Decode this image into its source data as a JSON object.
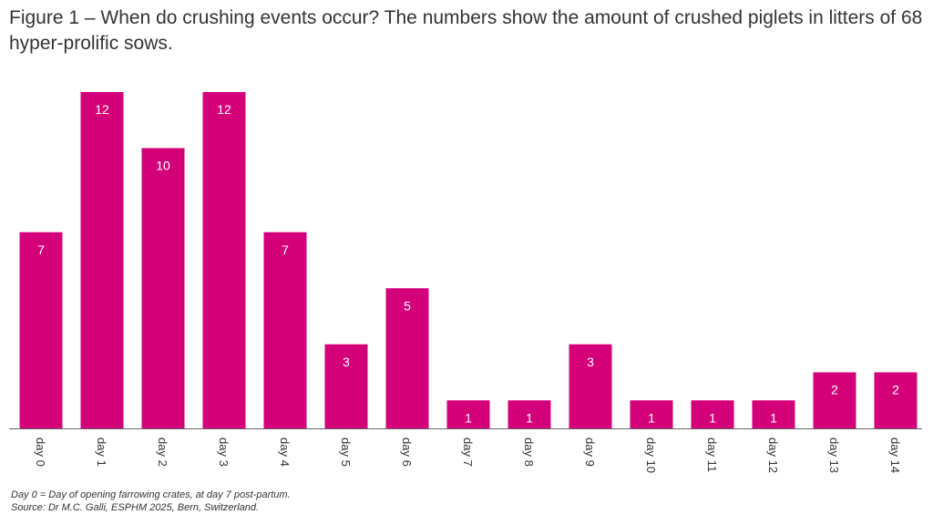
{
  "title": "Figure 1 – When do crushing events occur? The numbers show the amount of crushed piglets in litters of 68 hyper-prolific sows.",
  "footnotes": [
    "Day 0 = Day of opening farrowing crates, at day 7 post-partum.",
    "Source: Dr M.C. Galli, ESPHM 2025, Bern, Switzerland."
  ],
  "colors": {
    "bar": "#D4007A",
    "bar_label": "#FFFFFF",
    "axis": "#666666",
    "text": "#333333"
  },
  "chart_data": {
    "type": "bar",
    "categories": [
      "day 0",
      "day 1",
      "day 2",
      "day 3",
      "day 4",
      "day 5",
      "day 6",
      "day 7",
      "day 8",
      "day 9",
      "day 10",
      "day 11",
      "day 12",
      "day 13",
      "day 14"
    ],
    "values": [
      7,
      12,
      10,
      12,
      7,
      3,
      5,
      1,
      1,
      3,
      1,
      1,
      1,
      2,
      2
    ],
    "title": "Figure 1 – When do crushing events occur? The numbers show the amount of crushed piglets in litters of 68 hyper-prolific sows.",
    "xlabel": "",
    "ylabel": "",
    "ylim": [
      0,
      12
    ],
    "grid": false,
    "legend": "none",
    "tick_label_rotation": "vertical"
  }
}
